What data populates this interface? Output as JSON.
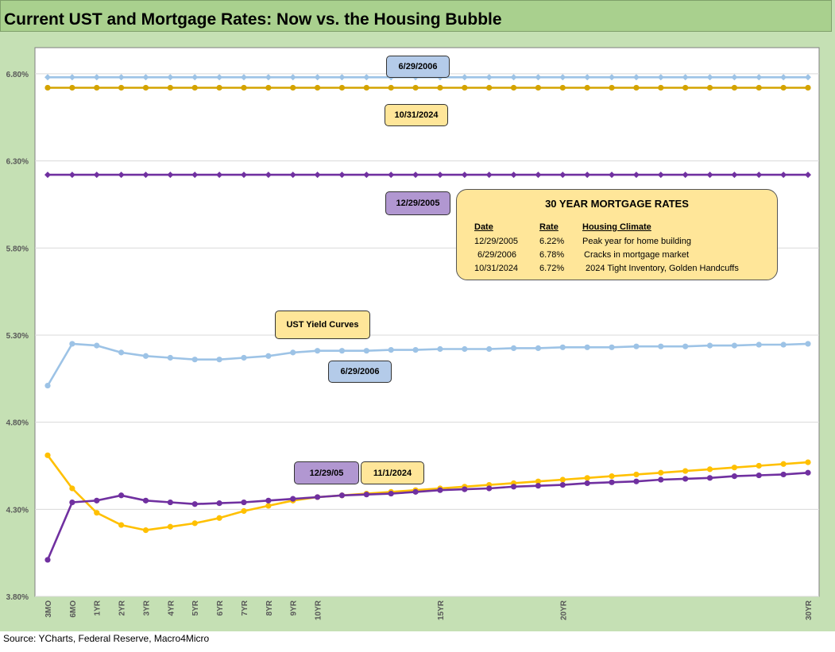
{
  "title": "Current UST and Mortgage Rates: Now vs. the Housing Bubble",
  "source": "Source: YCharts, Federal Reserve, Macro4Micro",
  "chart_data": {
    "type": "line",
    "ylim": [
      3.8,
      6.95
    ],
    "yticks": [
      "3.80%",
      "4.30%",
      "4.80%",
      "5.30%",
      "5.80%",
      "6.30%",
      "6.80%"
    ],
    "ytick_values": [
      3.8,
      4.3,
      4.8,
      5.3,
      5.8,
      6.3,
      6.8
    ],
    "grid": true,
    "x_tick_labels": {
      "0": "3MO",
      "1": "6MO",
      "2": "1YR",
      "3": "2YR",
      "4": "3YR",
      "5": "4YR",
      "6": "5YR",
      "7": "6YR",
      "8": "7YR",
      "9": "8YR",
      "10": "9YR",
      "11": "10YR",
      "16": "15YR",
      "21": "20YR",
      "31": "30YR"
    },
    "series": [
      {
        "name": "6/29/2006",
        "color": "#9dc3e6",
        "marker": "diamond",
        "values": [
          6.78,
          6.78,
          6.78,
          6.78,
          6.78,
          6.78,
          6.78,
          6.78,
          6.78,
          6.78,
          6.78,
          6.78,
          6.78,
          6.78,
          6.78,
          6.78,
          6.78,
          6.78,
          6.78,
          6.78,
          6.78,
          6.78,
          6.78,
          6.78,
          6.78,
          6.78,
          6.78,
          6.78,
          6.78,
          6.78,
          6.78,
          6.78
        ]
      },
      {
        "name": "10/31/2024",
        "color": "#d4a300",
        "marker": "circle",
        "values": [
          6.72,
          6.72,
          6.72,
          6.72,
          6.72,
          6.72,
          6.72,
          6.72,
          6.72,
          6.72,
          6.72,
          6.72,
          6.72,
          6.72,
          6.72,
          6.72,
          6.72,
          6.72,
          6.72,
          6.72,
          6.72,
          6.72,
          6.72,
          6.72,
          6.72,
          6.72,
          6.72,
          6.72,
          6.72,
          6.72,
          6.72,
          6.72
        ]
      },
      {
        "name": "12/29/2005",
        "color": "#7030a0",
        "marker": "diamond",
        "values": [
          6.22,
          6.22,
          6.22,
          6.22,
          6.22,
          6.22,
          6.22,
          6.22,
          6.22,
          6.22,
          6.22,
          6.22,
          6.22,
          6.22,
          6.22,
          6.22,
          6.22,
          6.22,
          6.22,
          6.22,
          6.22,
          6.22,
          6.22,
          6.22,
          6.22,
          6.22,
          6.22,
          6.22,
          6.22,
          6.22,
          6.22,
          6.22
        ]
      },
      {
        "name": "6/29/2006",
        "color": "#9dc3e6",
        "marker": "circle",
        "values": [
          5.01,
          5.25,
          5.24,
          5.2,
          5.18,
          5.17,
          5.16,
          5.16,
          5.17,
          5.18,
          5.2,
          5.21,
          5.21,
          5.21,
          5.215,
          5.215,
          5.22,
          5.22,
          5.22,
          5.225,
          5.225,
          5.23,
          5.23,
          5.23,
          5.235,
          5.235,
          5.235,
          5.24,
          5.24,
          5.245,
          5.245,
          5.25
        ]
      },
      {
        "name": "11/1/2024",
        "color": "#ffc000",
        "marker": "circle",
        "values": [
          4.61,
          4.42,
          4.28,
          4.21,
          4.18,
          4.2,
          4.22,
          4.25,
          4.29,
          4.32,
          4.35,
          4.37,
          4.38,
          4.39,
          4.4,
          4.41,
          4.42,
          4.43,
          4.44,
          4.45,
          4.46,
          4.47,
          4.48,
          4.49,
          4.5,
          4.51,
          4.52,
          4.53,
          4.54,
          4.55,
          4.56,
          4.57
        ]
      },
      {
        "name": "12/29/05",
        "color": "#7030a0",
        "marker": "circle",
        "values": [
          4.01,
          4.34,
          4.35,
          4.38,
          4.35,
          4.34,
          4.33,
          4.335,
          4.34,
          4.35,
          4.36,
          4.37,
          4.38,
          4.385,
          4.39,
          4.4,
          4.41,
          4.415,
          4.42,
          4.43,
          4.435,
          4.44,
          4.45,
          4.455,
          4.46,
          4.47,
          4.475,
          4.48,
          4.49,
          4.495,
          4.5,
          4.51
        ]
      }
    ]
  },
  "labels": {
    "mort_2006": "6/29/2006",
    "mort_2024": "10/31/2024",
    "mort_2005": "12/29/2005",
    "ust_caption": "UST  Yield Curves",
    "ust_2006": "6/29/2006",
    "ust_2005": "12/29/05",
    "ust_2024": "11/1/2024"
  },
  "info_box": {
    "title": "30 YEAR MORTGAGE RATES",
    "headers": [
      "Date",
      "Rate",
      "Housing  Climate"
    ],
    "rows": [
      [
        "12/29/2005",
        "6.22%",
        "Peak year for home building"
      ],
      [
        "6/29/2006",
        "6.78%",
        "Cracks in mortgage market"
      ],
      [
        "10/31/2024",
        "6.72%",
        "2024 Tight Inventory, Golden Handcuffs"
      ]
    ]
  }
}
